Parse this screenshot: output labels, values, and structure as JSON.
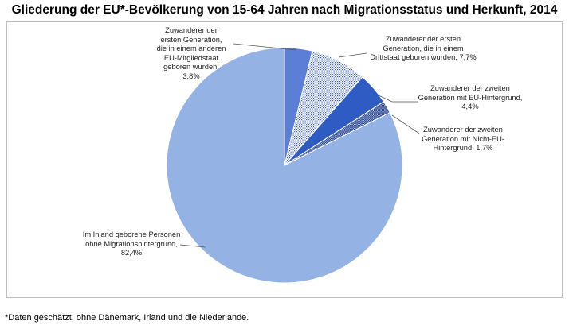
{
  "chart_data": {
    "type": "pie",
    "title": "Gliederung der EU*-Bevölkerung von 15-64 Jahren nach Migrationsstatus und Herkunft, 2014",
    "slices": [
      {
        "label_lines": [
          "Zuwanderer der",
          "ersten Generation,",
          "die in einem anderen",
          "EU-Mitgliedstaat",
          "geboren wurden,",
          "3,8%"
        ],
        "value": 3.8,
        "color": "#5b7fd6",
        "fill": "solid"
      },
      {
        "label_lines": [
          "Zuwanderer der ersten",
          "Generation, die in einem",
          "Drittstaat geboren wurden, 7,7%"
        ],
        "value": 7.7,
        "color": "#4a6ed0",
        "fill": "dots-light"
      },
      {
        "label_lines": [
          "Zuwanderer der zweiten",
          "Generation mit EU-Hintergrund,",
          "4,4%"
        ],
        "value": 4.4,
        "color": "#2f5cc2",
        "fill": "solid"
      },
      {
        "label_lines": [
          "Zuwanderer der zweiten",
          "Generation mit Nicht-EU-",
          "Hintergrund, 1,7%"
        ],
        "value": 1.7,
        "color": "#1f3f8f",
        "fill": "dots-dark"
      },
      {
        "label_lines": [
          "Im Inland geborene Personen",
          "ohne Migrationshintergrund,",
          "82,4%"
        ],
        "value": 82.4,
        "color": "#94b3e4",
        "fill": "solid"
      }
    ],
    "footnote": "*Daten geschätzt, ohne Dänemark, Irland und die Niederlande."
  }
}
